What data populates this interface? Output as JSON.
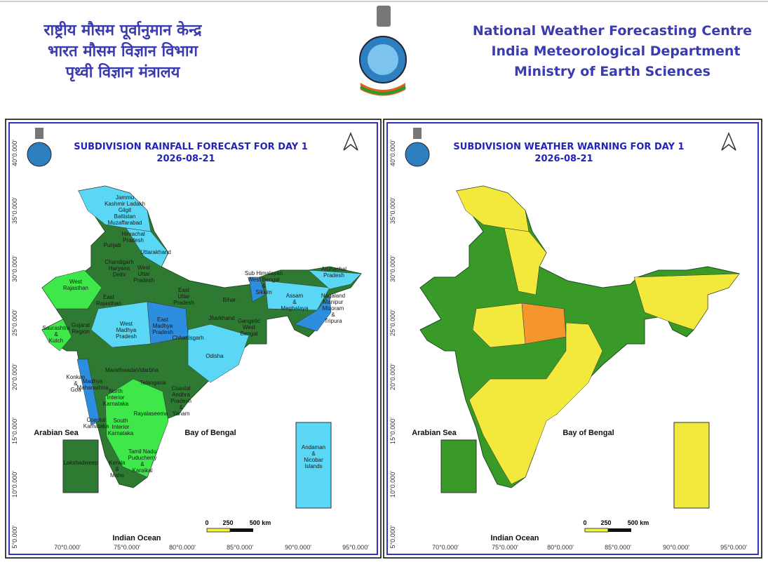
{
  "header": {
    "hindi_lines": [
      "राष्ट्रीय मौसम पूर्वानुमान केन्द्र",
      "भारत मौसम विज्ञान विभाग",
      "पृथ्वी विज्ञान मंत्रालय"
    ],
    "english_lines": [
      "National Weather Forecasting Centre",
      "India Meteorological Department",
      "Ministry of Earth Sciences"
    ]
  },
  "panels": [
    {
      "title": "SUBDIVISION RAINFALL FORECAST FOR DAY 1",
      "date": "2026-08-21",
      "sea_labels": [
        "Arabian Sea",
        "Bay of Bengal",
        "Indian Ocean"
      ],
      "lat_labels": [
        "40°0.000'",
        "35°0.000'",
        "30°0.000'",
        "25°0.000'",
        "20°0.000'",
        "15°0.000'",
        "10°0.000'",
        "5°0.000'"
      ],
      "lon_labels": [
        "70°0.000'",
        "75°0.000'",
        "80°0.000'",
        "85°0.000'",
        "90°0.000'",
        "95°0.000'"
      ],
      "scale": [
        0,
        250,
        "500 km"
      ],
      "regions": [
        [
          "Jammu",
          "Kashmir Ladakh",
          "Gilgit",
          "Baltistan",
          "Muzaffarabad"
        ],
        [
          "Himachal",
          "Pradesh"
        ],
        [
          "Punjab"
        ],
        [
          "Uttarakhand"
        ],
        [
          "Chandigarh",
          "Haryana",
          "Delhi"
        ],
        [
          "West",
          "Rajasthan"
        ],
        [
          "West",
          "Uttar",
          "Pradesh"
        ],
        [
          "East",
          "Rajasthan"
        ],
        [
          "East",
          "Uttar",
          "Pradesh"
        ],
        [
          "Bihar"
        ],
        [
          "Sub Himalayan",
          "West Bengal",
          "&",
          "Sikkim"
        ],
        [
          "Arunachal",
          "Pradesh"
        ],
        [
          "Assam",
          "&",
          "Meghalaya"
        ],
        [
          "Nagaland",
          "Manipur",
          "Mizoram",
          "&",
          "Tripura"
        ],
        [
          "Jharkhand"
        ],
        [
          "Gangetic",
          "West",
          "Bengal"
        ],
        [
          "Saurashtra",
          "&",
          "Kutch"
        ],
        [
          "Gujarat",
          "Region"
        ],
        [
          "West",
          "Madhya",
          "Pradesh"
        ],
        [
          "East",
          "Madhya",
          "Pradesh"
        ],
        [
          "Chhattisgarh"
        ],
        [
          "Odisha"
        ],
        [
          "Vidarbha"
        ],
        [
          "Marathwada"
        ],
        [
          "Konkan",
          "&",
          "Goa"
        ],
        [
          "Madhya",
          "Maharashtra"
        ],
        [
          "Telangana"
        ],
        [
          "North",
          "Interior",
          "Karnataka"
        ],
        [
          "Coastal",
          "Andhra",
          "Pradesh",
          "&",
          "Yanam"
        ],
        [
          "Rayalaseema"
        ],
        [
          "Coastal",
          "Karnataka"
        ],
        [
          "South",
          "Interior",
          "Karnataka"
        ],
        [
          "Tamil Nadu",
          "Puducherry",
          "&",
          "Karaikal"
        ],
        [
          "Kerala",
          "&",
          "Mahe"
        ],
        [
          "Lakshadweep"
        ],
        [
          "Andaman",
          "&",
          "Nicobar",
          "Islands"
        ]
      ]
    },
    {
      "title": "SUBDIVISION WEATHER WARNING FOR DAY 1",
      "date": "2026-08-21",
      "sea_labels": [
        "Arabian Sea",
        "Bay of Bengal",
        "Indian Ocean"
      ],
      "lat_labels": [
        "40°0.000'",
        "35°0.000'",
        "30°0.000'",
        "25°0.000'",
        "20°0.000'",
        "15°0.000'",
        "10°0.000'",
        "5°0.000'"
      ],
      "lon_labels": [
        "70°0.000'",
        "75°0.000'",
        "80°0.000'",
        "85°0.000'",
        "90°0.000'",
        "95°0.000'"
      ],
      "scale": [
        0,
        250,
        "500 km"
      ]
    }
  ]
}
